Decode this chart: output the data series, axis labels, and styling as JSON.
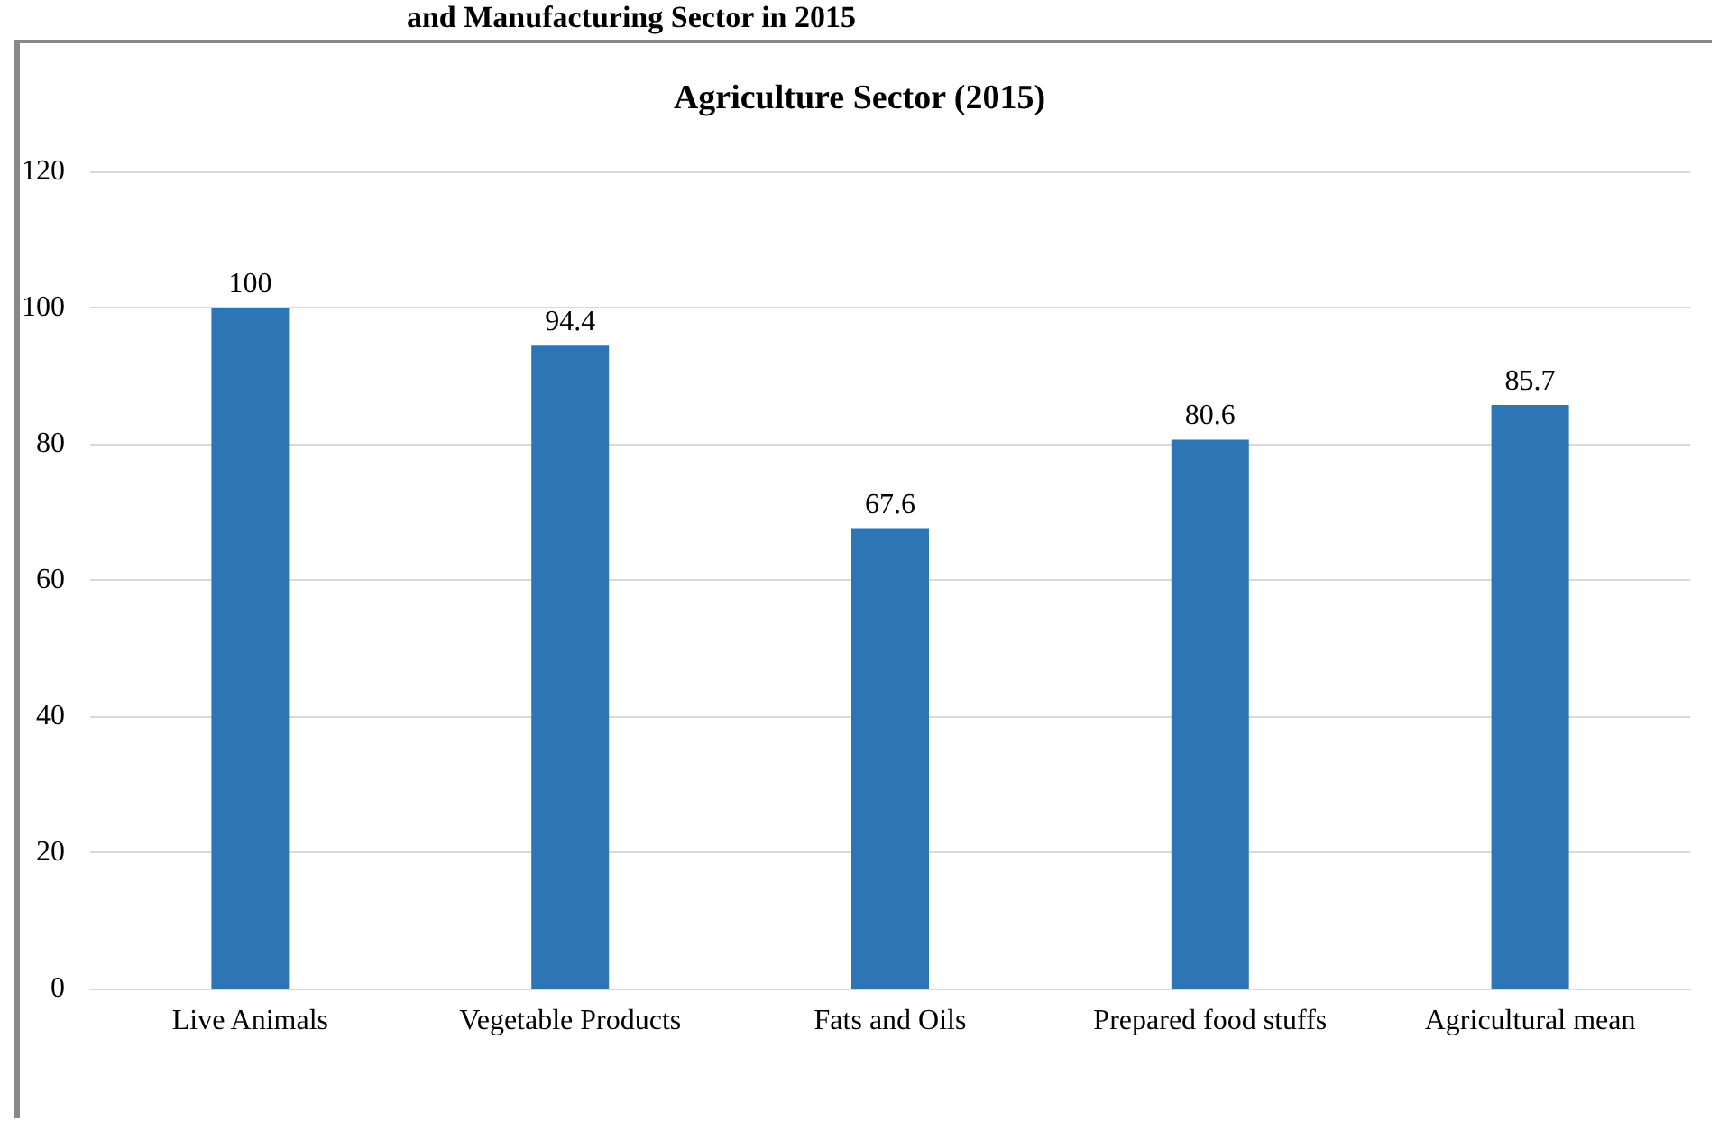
{
  "chart_data": {
    "type": "bar",
    "title": "Agriculture Sector (2015)",
    "annotations": [
      "and Manufacturing Sector in 2015"
    ],
    "categories": [
      "Live Animals",
      "Vegetable Products",
      "Fats and Oils",
      "Prepared food stuffs",
      "Agricultural mean"
    ],
    "values": [
      100,
      94.4,
      67.6,
      80.6,
      85.7
    ],
    "color": "#2e75b6",
    "ylim": [
      0,
      120
    ],
    "yticks": [
      0,
      20,
      40,
      60,
      80,
      100,
      120
    ],
    "grid": "y",
    "data_labels": true
  }
}
